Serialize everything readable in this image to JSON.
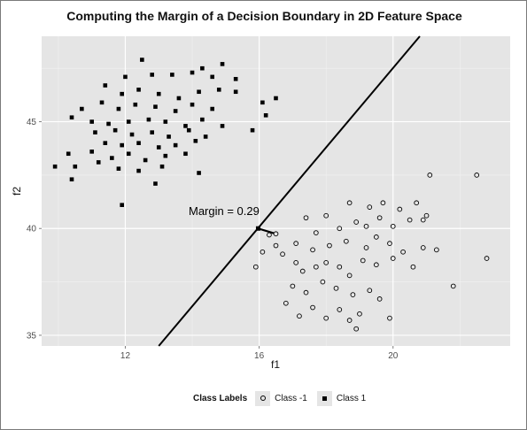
{
  "chart_data": {
    "type": "scatter",
    "title": "Computing the Margin of a Decision Boundary in 2D Feature Space",
    "xlabel": "f1",
    "ylabel": "f2",
    "xlim": [
      9.5,
      23.5
    ],
    "ylim": [
      34.5,
      49.0
    ],
    "xticks": [
      12,
      16,
      20
    ],
    "yticks": [
      35,
      40,
      45
    ],
    "grid": true,
    "legend": {
      "title": "Class Labels",
      "position": "bottom"
    },
    "series": [
      {
        "name": "Class -1",
        "marker": "open-circle",
        "points": [
          [
            21.1,
            42.5
          ],
          [
            22.5,
            42.5
          ],
          [
            17.4,
            40.5
          ],
          [
            18.0,
            40.6
          ],
          [
            18.7,
            41.2
          ],
          [
            19.3,
            41.0
          ],
          [
            19.7,
            41.2
          ],
          [
            20.2,
            40.9
          ],
          [
            20.7,
            41.2
          ],
          [
            21.0,
            40.6
          ],
          [
            17.7,
            39.8
          ],
          [
            18.4,
            40.0
          ],
          [
            18.9,
            40.3
          ],
          [
            19.2,
            40.1
          ],
          [
            19.6,
            40.5
          ],
          [
            20.0,
            40.1
          ],
          [
            20.5,
            40.4
          ],
          [
            20.9,
            40.4
          ],
          [
            16.3,
            39.7
          ],
          [
            16.5,
            39.2
          ],
          [
            16.7,
            38.8
          ],
          [
            17.1,
            39.3
          ],
          [
            17.6,
            39.0
          ],
          [
            18.1,
            39.2
          ],
          [
            18.6,
            39.4
          ],
          [
            19.2,
            39.1
          ],
          [
            19.5,
            39.6
          ],
          [
            19.9,
            39.3
          ],
          [
            20.3,
            38.9
          ],
          [
            20.9,
            39.1
          ],
          [
            21.3,
            39.0
          ],
          [
            15.9,
            38.2
          ],
          [
            16.1,
            38.9
          ],
          [
            17.1,
            38.4
          ],
          [
            17.3,
            38.0
          ],
          [
            17.7,
            38.2
          ],
          [
            18.0,
            38.4
          ],
          [
            18.4,
            38.2
          ],
          [
            18.7,
            37.8
          ],
          [
            19.1,
            38.5
          ],
          [
            19.5,
            38.3
          ],
          [
            20.0,
            38.6
          ],
          [
            20.6,
            38.2
          ],
          [
            22.8,
            38.6
          ],
          [
            17.0,
            37.3
          ],
          [
            17.4,
            37.0
          ],
          [
            17.9,
            37.5
          ],
          [
            18.3,
            37.2
          ],
          [
            18.8,
            36.9
          ],
          [
            19.3,
            37.1
          ],
          [
            19.6,
            36.7
          ],
          [
            21.8,
            37.3
          ],
          [
            16.8,
            36.5
          ],
          [
            17.2,
            35.9
          ],
          [
            17.6,
            36.3
          ],
          [
            18.0,
            35.8
          ],
          [
            18.4,
            36.2
          ],
          [
            18.7,
            35.7
          ],
          [
            19.0,
            36.0
          ],
          [
            19.9,
            35.8
          ],
          [
            18.9,
            35.3
          ]
        ]
      },
      {
        "name": "Class 1",
        "marker": "filled-square",
        "points": [
          [
            12.5,
            47.9
          ],
          [
            14.3,
            47.5
          ],
          [
            14.9,
            47.7
          ],
          [
            12.0,
            47.1
          ],
          [
            12.8,
            47.2
          ],
          [
            13.4,
            47.2
          ],
          [
            14.0,
            47.3
          ],
          [
            14.6,
            47.1
          ],
          [
            15.3,
            47.0
          ],
          [
            11.4,
            46.7
          ],
          [
            11.9,
            46.3
          ],
          [
            12.4,
            46.5
          ],
          [
            13.0,
            46.3
          ],
          [
            13.6,
            46.1
          ],
          [
            14.2,
            46.4
          ],
          [
            14.8,
            46.5
          ],
          [
            15.3,
            46.4
          ],
          [
            16.5,
            46.1
          ],
          [
            10.7,
            45.6
          ],
          [
            11.3,
            45.9
          ],
          [
            11.8,
            45.6
          ],
          [
            12.3,
            45.8
          ],
          [
            12.9,
            45.7
          ],
          [
            13.5,
            45.5
          ],
          [
            14.0,
            45.8
          ],
          [
            14.6,
            45.6
          ],
          [
            16.1,
            45.9
          ],
          [
            10.4,
            45.2
          ],
          [
            11.0,
            45.0
          ],
          [
            11.5,
            44.9
          ],
          [
            12.1,
            45.0
          ],
          [
            12.7,
            45.1
          ],
          [
            13.2,
            45.0
          ],
          [
            13.8,
            44.8
          ],
          [
            14.3,
            45.1
          ],
          [
            14.9,
            44.8
          ],
          [
            16.2,
            45.3
          ],
          [
            11.1,
            44.5
          ],
          [
            11.7,
            44.6
          ],
          [
            12.2,
            44.4
          ],
          [
            12.8,
            44.5
          ],
          [
            13.3,
            44.3
          ],
          [
            13.9,
            44.6
          ],
          [
            14.4,
            44.3
          ],
          [
            15.8,
            44.6
          ],
          [
            11.4,
            44.0
          ],
          [
            11.9,
            43.9
          ],
          [
            12.4,
            44.0
          ],
          [
            13.0,
            43.8
          ],
          [
            13.5,
            43.9
          ],
          [
            14.1,
            44.1
          ],
          [
            10.3,
            43.5
          ],
          [
            11.0,
            43.6
          ],
          [
            11.6,
            43.3
          ],
          [
            12.1,
            43.5
          ],
          [
            12.6,
            43.2
          ],
          [
            13.2,
            43.4
          ],
          [
            13.8,
            43.5
          ],
          [
            9.9,
            42.9
          ],
          [
            10.5,
            42.9
          ],
          [
            11.2,
            43.1
          ],
          [
            11.8,
            42.8
          ],
          [
            12.4,
            42.7
          ],
          [
            13.1,
            42.9
          ],
          [
            14.2,
            42.6
          ],
          [
            10.4,
            42.3
          ],
          [
            12.9,
            42.1
          ],
          [
            11.9,
            41.1
          ]
        ]
      }
    ],
    "decision_boundary": {
      "x": [
        13.0,
        20.8
      ],
      "y": [
        34.5,
        49.0
      ]
    },
    "margin": {
      "label": "Margin =  0.29",
      "segment": {
        "x": [
          15.97,
          16.5
        ],
        "y": [
          40.0,
          39.75
        ]
      }
    }
  }
}
